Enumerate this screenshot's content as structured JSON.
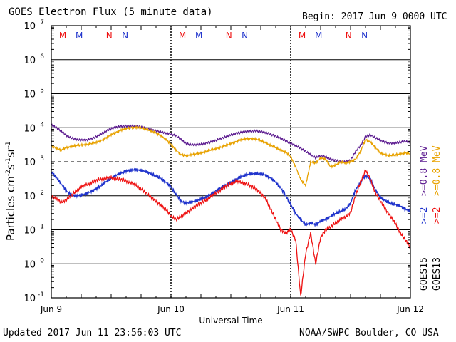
{
  "header": {
    "title": "GOES Electron Flux (5 minute data)",
    "begin": "Begin: 2017 Jun 9 0000 UTC"
  },
  "footer": {
    "updated": "Updated 2017 Jun 11 23:56:03 UTC",
    "source": "NOAA/SWPC Boulder, CO USA"
  },
  "legend": {
    "g15_label": "GOES15",
    "g13_label": "GOES13",
    "g15_08": ">=0.8 MeV",
    "g13_08": ">=0.8 MeV",
    "g15_2": ">=2",
    "g13_2": ">=2",
    "g15_color_08": "#5b1a8f",
    "g15_color_2": "#1f33cc",
    "g13_color_08": "#e8a200",
    "g13_color_2": "#ee1111"
  },
  "chart_data": {
    "type": "line",
    "title": "GOES Electron Flux (5 minute data)",
    "xlabel": "Universal Time",
    "ylabel": "Particles cm-2s-1sr-1",
    "yscale": "log",
    "xlim": [
      0,
      72
    ],
    "ylim": [
      0.1,
      10000000
    ],
    "x_ticks": [
      {
        "x": 0,
        "label": "Jun 9"
      },
      {
        "x": 24,
        "label": "Jun 10"
      },
      {
        "x": 48,
        "label": "Jun 11"
      },
      {
        "x": 72,
        "label": "Jun 12"
      }
    ],
    "y_ticks": [
      {
        "exp": "-1",
        "value": 0.1
      },
      {
        "exp": "0",
        "value": 1
      },
      {
        "exp": "1",
        "value": 10
      },
      {
        "exp": "2",
        "value": 100
      },
      {
        "exp": "3",
        "value": 1000
      },
      {
        "exp": "4",
        "value": 10000
      },
      {
        "exp": "5",
        "value": 100000
      },
      {
        "exp": "6",
        "value": 1000000
      },
      {
        "exp": "7",
        "value": 10000000
      }
    ],
    "threshold_line": 1000,
    "noon_markers": [
      {
        "x": 2.3,
        "label": "M",
        "color": "#ee1111"
      },
      {
        "x": 5.6,
        "label": "M",
        "color": "#1f33cc"
      },
      {
        "x": 11.6,
        "label": "N",
        "color": "#ee1111"
      },
      {
        "x": 14.8,
        "label": "N",
        "color": "#1f33cc"
      },
      {
        "x": 26.3,
        "label": "M",
        "color": "#ee1111"
      },
      {
        "x": 29.6,
        "label": "M",
        "color": "#1f33cc"
      },
      {
        "x": 35.6,
        "label": "N",
        "color": "#ee1111"
      },
      {
        "x": 38.8,
        "label": "N",
        "color": "#1f33cc"
      },
      {
        "x": 50.3,
        "label": "M",
        "color": "#ee1111"
      },
      {
        "x": 53.6,
        "label": "M",
        "color": "#1f33cc"
      },
      {
        "x": 59.6,
        "label": "N",
        "color": "#ee1111"
      },
      {
        "x": 62.8,
        "label": "N",
        "color": "#1f33cc"
      }
    ],
    "series": [
      {
        "name": "GOES15 >=0.8 MeV",
        "color": "#5b1a8f",
        "x": [
          0,
          1,
          2,
          3,
          4,
          5,
          6,
          7,
          8,
          9,
          10,
          11,
          12,
          13,
          14,
          15,
          16,
          17,
          18,
          19,
          20,
          21,
          22,
          23,
          24,
          25,
          26,
          27,
          28,
          29,
          30,
          31,
          32,
          33,
          34,
          35,
          36,
          37,
          38,
          39,
          40,
          41,
          42,
          43,
          44,
          45,
          46,
          47,
          48,
          49,
          50,
          51,
          52,
          53,
          54,
          55,
          56,
          57,
          58,
          59,
          60,
          61,
          62,
          63,
          64,
          65,
          66,
          67,
          68,
          69,
          70,
          71,
          72
        ],
        "y": [
          12000,
          10000,
          8000,
          6000,
          5000,
          4500,
          4300,
          4300,
          4700,
          5500,
          6600,
          8000,
          9300,
          10300,
          11000,
          11200,
          11300,
          11000,
          10400,
          9600,
          8700,
          8000,
          7600,
          7000,
          6500,
          5800,
          4500,
          3400,
          3200,
          3200,
          3300,
          3500,
          3800,
          4200,
          4800,
          5500,
          6200,
          6800,
          7200,
          7600,
          7900,
          8000,
          7800,
          7200,
          6400,
          5600,
          4800,
          4100,
          3500,
          3000,
          2500,
          2000,
          1600,
          1300,
          1500,
          1400,
          1200,
          1100,
          1000,
          1000,
          1100,
          2000,
          3000,
          5500,
          6200,
          5000,
          4200,
          3700,
          3500,
          3600,
          3800,
          4000,
          3600
        ]
      },
      {
        "name": "GOES13 >=0.8 MeV",
        "color": "#e8a200",
        "x": [
          0,
          1,
          2,
          3,
          4,
          5,
          6,
          7,
          8,
          9,
          10,
          11,
          12,
          13,
          14,
          15,
          16,
          17,
          18,
          19,
          20,
          21,
          22,
          23,
          24,
          25,
          26,
          27,
          28,
          29,
          30,
          31,
          32,
          33,
          34,
          35,
          36,
          37,
          38,
          39,
          40,
          41,
          42,
          43,
          44,
          45,
          46,
          47,
          48,
          49,
          50,
          51,
          52,
          53,
          54,
          55,
          56,
          57,
          58,
          59,
          60,
          61,
          62,
          63,
          64,
          65,
          66,
          67,
          68,
          69,
          70,
          71,
          72
        ],
        "y": [
          3000,
          2500,
          2200,
          2600,
          2800,
          3000,
          3100,
          3200,
          3400,
          3700,
          4200,
          5000,
          6200,
          7400,
          8500,
          9400,
          10000,
          10200,
          9800,
          9000,
          8000,
          7000,
          5800,
          4500,
          3200,
          2200,
          1600,
          1500,
          1600,
          1700,
          1800,
          2000,
          2200,
          2400,
          2700,
          3000,
          3400,
          3900,
          4400,
          4700,
          4800,
          4600,
          4200,
          3600,
          3000,
          2600,
          2200,
          1900,
          1400,
          700,
          300,
          200,
          1000,
          900,
          1300,
          1200,
          700,
          800,
          1000,
          900,
          1000,
          1200,
          2000,
          4500,
          3800,
          2600,
          1800,
          1600,
          1500,
          1600,
          1700,
          1800,
          1700
        ]
      },
      {
        "name": "GOES15 >=2",
        "color": "#1f33cc",
        "x": [
          0,
          1,
          2,
          3,
          4,
          5,
          6,
          7,
          8,
          9,
          10,
          11,
          12,
          13,
          14,
          15,
          16,
          17,
          18,
          19,
          20,
          21,
          22,
          23,
          24,
          25,
          26,
          27,
          28,
          29,
          30,
          31,
          32,
          33,
          34,
          35,
          36,
          37,
          38,
          39,
          40,
          41,
          42,
          43,
          44,
          45,
          46,
          47,
          48,
          49,
          50,
          51,
          52,
          53,
          54,
          55,
          56,
          57,
          58,
          59,
          60,
          61,
          62,
          63,
          64,
          65,
          66,
          67,
          68,
          69,
          70,
          71,
          72
        ],
        "y": [
          500,
          350,
          220,
          140,
          105,
          100,
          105,
          115,
          135,
          160,
          200,
          260,
          330,
          400,
          470,
          530,
          570,
          580,
          560,
          510,
          440,
          380,
          320,
          250,
          180,
          110,
          70,
          60,
          65,
          70,
          80,
          90,
          110,
          140,
          170,
          210,
          250,
          300,
          360,
          410,
          440,
          450,
          440,
          400,
          330,
          250,
          170,
          100,
          55,
          30,
          20,
          14,
          16,
          14,
          18,
          20,
          25,
          30,
          35,
          40,
          60,
          150,
          250,
          400,
          300,
          150,
          90,
          70,
          60,
          55,
          50,
          40,
          35
        ]
      },
      {
        "name": "GOES13 >=2",
        "color": "#ee1111",
        "x": [
          0,
          1,
          2,
          3,
          4,
          5,
          6,
          7,
          8,
          9,
          10,
          11,
          12,
          13,
          14,
          15,
          16,
          17,
          18,
          19,
          20,
          21,
          22,
          23,
          24,
          25,
          26,
          27,
          28,
          29,
          30,
          31,
          32,
          33,
          34,
          35,
          36,
          37,
          38,
          39,
          40,
          41,
          42,
          43,
          44,
          45,
          46,
          47,
          48,
          49,
          50,
          51,
          52,
          53,
          54,
          55,
          56,
          57,
          58,
          59,
          60,
          61,
          62,
          63,
          64,
          65,
          66,
          67,
          68,
          69,
          70,
          71,
          72
        ],
        "y": [
          100,
          80,
          65,
          75,
          100,
          140,
          180,
          210,
          240,
          280,
          310,
          330,
          340,
          320,
          300,
          270,
          240,
          200,
          160,
          120,
          90,
          70,
          50,
          40,
          25,
          20,
          25,
          30,
          40,
          50,
          60,
          75,
          95,
          120,
          150,
          190,
          230,
          260,
          250,
          230,
          190,
          160,
          120,
          80,
          40,
          20,
          10,
          8,
          10,
          5,
          0.11,
          2,
          8,
          1,
          6,
          10,
          12,
          16,
          20,
          24,
          32,
          100,
          250,
          560,
          300,
          120,
          70,
          40,
          25,
          15,
          8,
          5,
          3
        ]
      }
    ]
  }
}
